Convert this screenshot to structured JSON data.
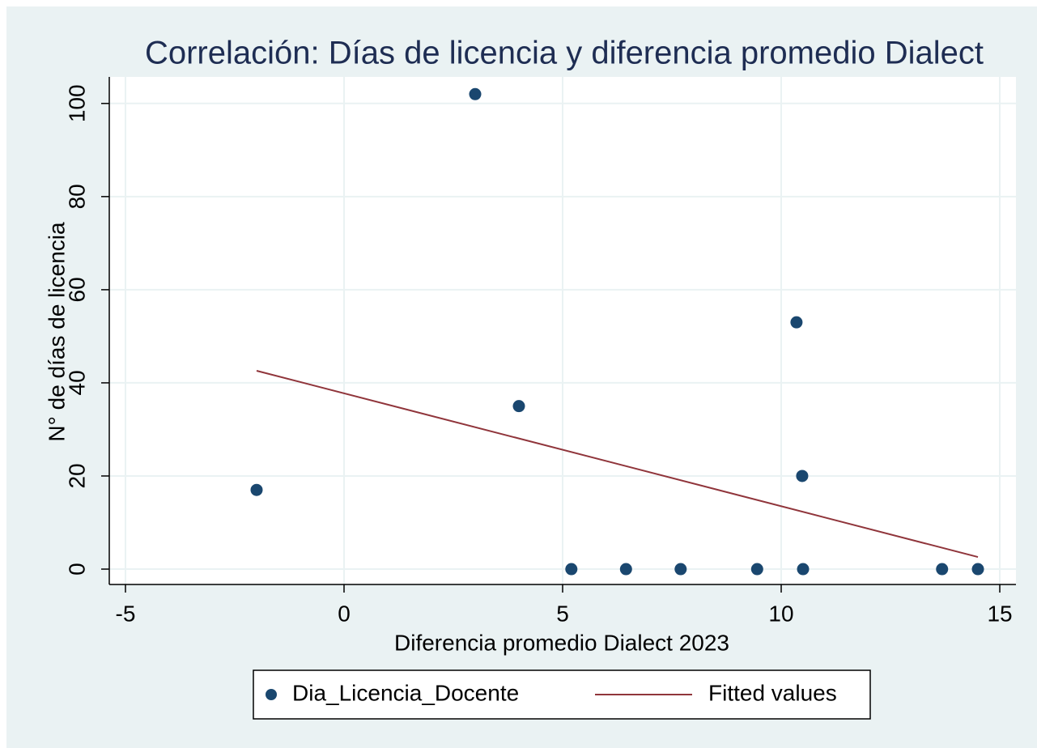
{
  "chart_data": {
    "type": "scatter",
    "title": "Correlación: Días de licencia y diferencia promedio Dialect",
    "x_label": "Diferencia promedio Dialect 2023",
    "y_label": "N° de días de licencia",
    "xlim": [
      -5.37,
      15.37
    ],
    "ylim": [
      -3.3,
      105.7
    ],
    "xticks": [
      -5,
      0,
      5,
      10,
      15
    ],
    "yticks": [
      0,
      20,
      40,
      60,
      80,
      100
    ],
    "grid": true,
    "legend": "bottom",
    "series": [
      {
        "name": "Dia_Licencia_Docente",
        "color": "#1a476f",
        "type": "scatter",
        "x": [
          -2,
          3,
          4,
          5.2,
          6.45,
          7.7,
          9.45,
          10.35,
          10.48,
          10.5,
          13.68,
          14.5
        ],
        "values": [
          17,
          102,
          35,
          0,
          0,
          0,
          0,
          53,
          20,
          0,
          0,
          0
        ]
      },
      {
        "name": "Fitted values",
        "color": "#90353b",
        "type": "line",
        "x": [
          -2,
          14.5
        ],
        "values": [
          42.6,
          2.6
        ]
      }
    ]
  }
}
